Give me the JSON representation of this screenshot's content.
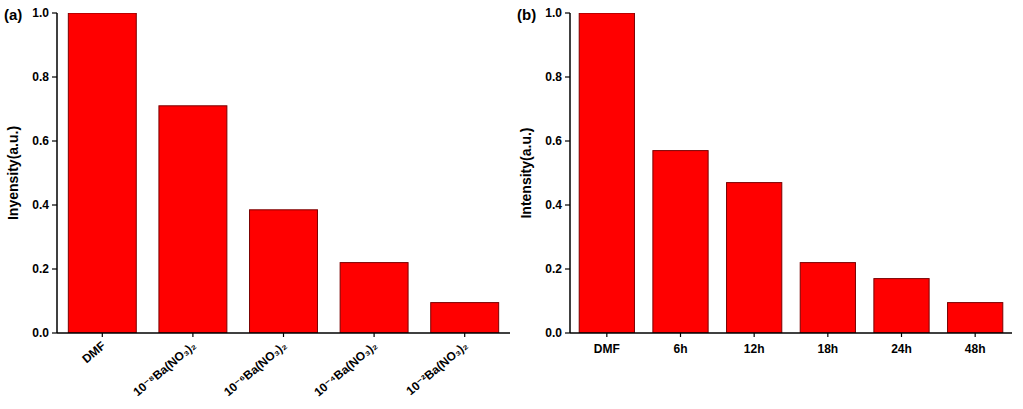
{
  "chart_data": [
    {
      "type": "bar",
      "title": "(a)",
      "y_label": "Inyensity(a.u.)",
      "categories": [
        "DMF",
        "10⁻⁸Ba(NO₃)₂",
        "10⁻⁶Ba(NO₃)₂",
        "10⁻⁴Ba(NO₃)₂",
        "10⁻²Ba(NO₃)₂"
      ],
      "values": [
        1.0,
        0.71,
        0.385,
        0.22,
        0.095
      ],
      "color": "#ff0000",
      "ylim": [
        0,
        1
      ],
      "yticks": [
        {
          "value": 0,
          "label": "0.0"
        },
        0.2,
        0.4,
        0.6,
        0.8,
        {
          "value": 1,
          "label": "1.0"
        }
      ],
      "grid": false
    },
    {
      "type": "bar",
      "title": "(b)",
      "y_label": "Intensity(a.u.)",
      "categories": [
        "DMF",
        "6h",
        "12h",
        "18h",
        "24h",
        "48h"
      ],
      "values": [
        1.0,
        0.57,
        0.47,
        0.22,
        0.17,
        0.095
      ],
      "color": "#ff0000",
      "ylim": [
        0,
        1
      ],
      "yticks": [
        {
          "value": 0,
          "label": "0.0"
        },
        0.2,
        0.4,
        0.6,
        0.8,
        {
          "value": 1,
          "label": "1.0"
        }
      ],
      "grid": false
    }
  ]
}
